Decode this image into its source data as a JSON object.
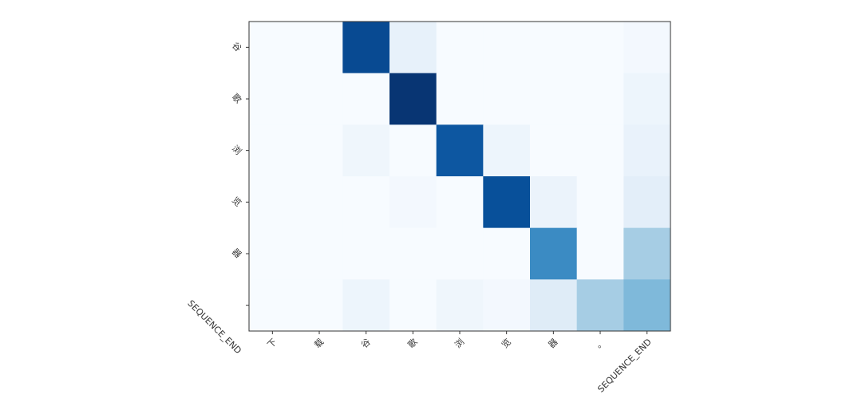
{
  "chart_data": {
    "type": "heatmap",
    "x": [
      "下",
      "载",
      "谷",
      "歌",
      "浏",
      "览",
      "器",
      "。",
      "SEQUENCE_END"
    ],
    "y": [
      "谷",
      "歌",
      "浏",
      "览",
      "器",
      "SEQUENCE_END"
    ],
    "values": [
      [
        0,
        0,
        0.9,
        0.08,
        0,
        0,
        0,
        0,
        0.02
      ],
      [
        0,
        0,
        0,
        0.98,
        0,
        0,
        0,
        0,
        0.05
      ],
      [
        0,
        0,
        0.04,
        0,
        0.85,
        0.05,
        0,
        0,
        0.07
      ],
      [
        0,
        0,
        0,
        0.02,
        0,
        0.88,
        0.06,
        0,
        0.1
      ],
      [
        0,
        0,
        0,
        0,
        0,
        0,
        0.65,
        0,
        0.35
      ],
      [
        0,
        0,
        0.05,
        0,
        0.04,
        0.02,
        0.12,
        0.35,
        0.45
      ]
    ],
    "zlim": [
      0,
      1
    ],
    "colormap": "Blues"
  }
}
